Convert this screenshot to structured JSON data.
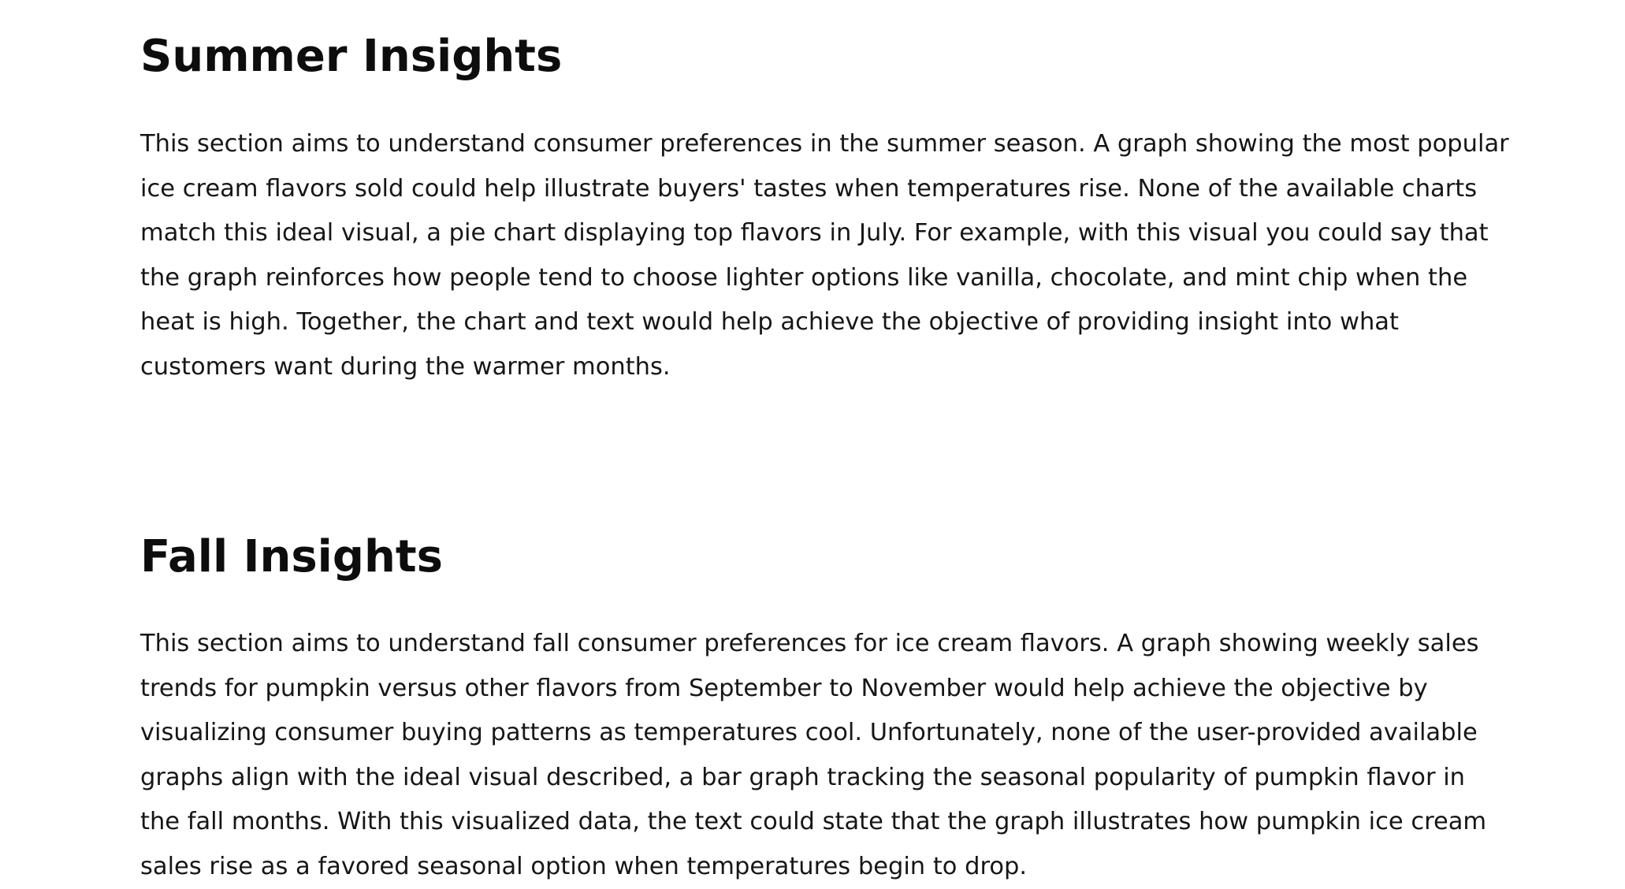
{
  "sections": [
    {
      "title": "Summer Insights",
      "body": "This section aims to understand consumer preferences in the summer season. A graph showing the most popular ice cream flavors sold could help illustrate buyers' tastes when temperatures rise. None of the available charts match this ideal visual, a pie chart displaying top flavors in July. For example, with this visual you could say that the graph reinforces how people tend to choose lighter options like vanilla, chocolate, and mint chip when the heat is high. Together, the chart and text would help achieve the objective of providing insight into what customers want during the warmer months."
    },
    {
      "title": "Fall Insights",
      "body": "This section aims to understand fall consumer preferences for ice cream flavors. A graph showing weekly sales trends for pumpkin versus other flavors from September to November would help achieve the objective by visualizing consumer buying patterns as temperatures cool. Unfortunately, none of the user-provided available graphs align with the ideal visual described, a bar graph tracking the seasonal popularity of pumpkin flavor in the fall months. With this visualized data, the text could state that the graph illustrates how pumpkin ice cream sales rise as a favored seasonal option when temperatures begin to drop."
    }
  ]
}
